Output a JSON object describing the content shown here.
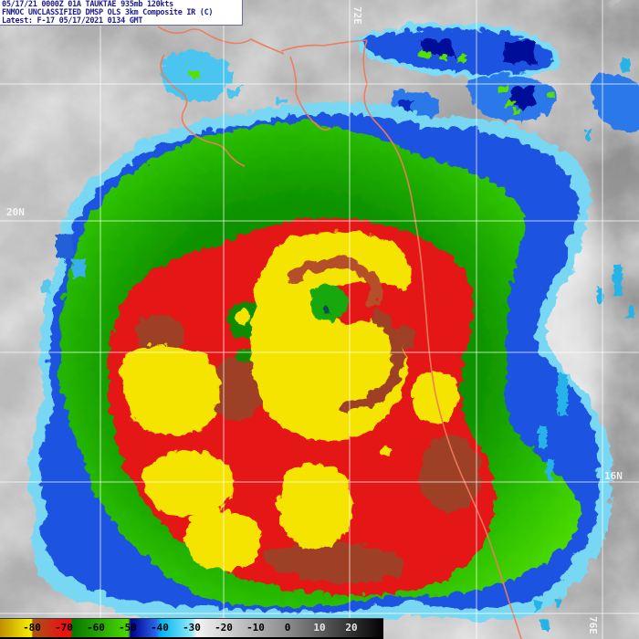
{
  "header": {
    "line1": "05/17/21 0000Z 01A TAUKTAE 935mb 120kts",
    "line2": "FNMOC UNCLASSIFIED DMSP OLS 3km Composite IR (C)",
    "line3": "Latest: F-17 05/17/2021 0134 GMT"
  },
  "grid": {
    "label_20n": "20N",
    "label_16n": "16N",
    "label_72e": "72E",
    "label_76e": "76E"
  },
  "colorbar": {
    "ticks": [
      {
        "label": "-80",
        "text_color": "#000000"
      },
      {
        "label": "-70",
        "text_color": "#000000"
      },
      {
        "label": "-60",
        "text_color": "#000000"
      },
      {
        "label": "-50",
        "text_color": "#000000"
      },
      {
        "label": "-40",
        "text_color": "#000000"
      },
      {
        "label": "-30",
        "text_color": "#000000"
      },
      {
        "label": "-20",
        "text_color": "#000000"
      },
      {
        "label": "-10",
        "text_color": "#000000"
      },
      {
        "label": "0",
        "text_color": "#000000"
      },
      {
        "label": "10",
        "text_color": "#e8e8e8"
      },
      {
        "label": "20",
        "text_color": "#e8e8e8"
      }
    ]
  },
  "colors": {
    "enh_yellow": "#f5e400",
    "enh_red": "#e41818",
    "enh_maroon": "#9e3f26",
    "enh_green_bright": "#3fd000",
    "enh_green_dark": "#067a00",
    "enh_navy": "#000898",
    "enh_blue": "#1e52e0",
    "enh_cyan": "#00b6ee",
    "coastline": "#ef7a5a",
    "header_text": "#1c1c8e"
  }
}
